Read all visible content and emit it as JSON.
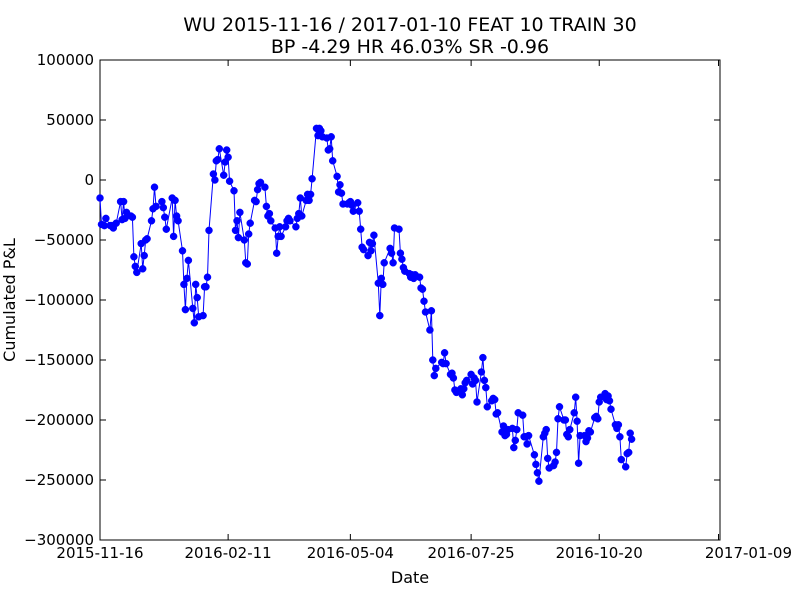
{
  "chart_data": {
    "type": "line",
    "title": "WU 2015-11-16 / 2017-01-10 FEAT 10 TRAIN 30",
    "subtitle": "BP -4.29 HR 46.03%  SR -0.96",
    "xlabel": "Date",
    "ylabel": "Cumulated P&L",
    "xlim": [
      "2015-11-16",
      "2017-01-10"
    ],
    "ylim": [
      -300000,
      100000
    ],
    "x_ticks": [
      "2015-11-16",
      "2016-02-11",
      "2016-05-04",
      "2016-07-25",
      "2016-10-20",
      "2017-01-09"
    ],
    "y_ticks": [
      100000,
      50000,
      0,
      -50000,
      -100000,
      -150000,
      -200000,
      -250000,
      -300000
    ],
    "y_tick_labels": [
      "100000",
      "50000",
      "0",
      "−50000",
      "−100000",
      "−150000",
      "−200000",
      "−250000",
      "−300000"
    ],
    "grid": false,
    "series_color": "#0000ff",
    "series": [
      {
        "name": "",
        "points": [
          [
            "2015-11-16",
            -15000
          ],
          [
            "2015-11-17",
            -37000
          ],
          [
            "2015-11-19",
            -38000
          ],
          [
            "2015-11-20",
            -32000
          ],
          [
            "2015-11-23",
            -38000
          ],
          [
            "2015-11-24",
            -38000
          ],
          [
            "2015-11-25",
            -40000
          ],
          [
            "2015-11-27",
            -36000
          ],
          [
            "2015-11-30",
            -18000
          ],
          [
            "2015-12-01",
            -33000
          ],
          [
            "2015-12-02",
            -18000
          ],
          [
            "2015-12-03",
            -32000
          ],
          [
            "2015-12-04",
            -27000
          ],
          [
            "2015-12-07",
            -30000
          ],
          [
            "2015-12-08",
            -31000
          ],
          [
            "2015-12-09",
            -64000
          ],
          [
            "2015-12-10",
            -72000
          ],
          [
            "2015-12-11",
            -77000
          ],
          [
            "2015-12-14",
            -53000
          ],
          [
            "2015-12-15",
            -74000
          ],
          [
            "2015-12-16",
            -63000
          ],
          [
            "2015-12-17",
            -50000
          ],
          [
            "2015-12-18",
            -49000
          ],
          [
            "2015-12-21",
            -34000
          ],
          [
            "2015-12-22",
            -24000
          ],
          [
            "2015-12-23",
            -6000
          ],
          [
            "2015-12-24",
            -22000
          ],
          [
            "2015-12-28",
            -18000
          ],
          [
            "2015-12-29",
            -23000
          ],
          [
            "2015-12-30",
            -31000
          ],
          [
            "2015-12-31",
            -41000
          ],
          [
            "2016-01-04",
            -15000
          ],
          [
            "2016-01-05",
            -47000
          ],
          [
            "2016-01-06",
            -17000
          ],
          [
            "2016-01-07",
            -30000
          ],
          [
            "2016-01-08",
            -34000
          ],
          [
            "2016-01-11",
            -59000
          ],
          [
            "2016-01-12",
            -87000
          ],
          [
            "2016-01-13",
            -108000
          ],
          [
            "2016-01-14",
            -82000
          ],
          [
            "2016-01-15",
            -67000
          ],
          [
            "2016-01-18",
            -107000
          ],
          [
            "2016-01-19",
            -119000
          ],
          [
            "2016-01-20",
            -87000
          ],
          [
            "2016-01-21",
            -98000
          ],
          [
            "2016-01-22",
            -114000
          ],
          [
            "2016-01-25",
            -113000
          ],
          [
            "2016-01-26",
            -89000
          ],
          [
            "2016-01-27",
            -89000
          ],
          [
            "2016-01-28",
            -81000
          ],
          [
            "2016-01-29",
            -42000
          ],
          [
            "2016-02-01",
            5000
          ],
          [
            "2016-02-02",
            0
          ],
          [
            "2016-02-03",
            16000
          ],
          [
            "2016-02-04",
            17000
          ],
          [
            "2016-02-05",
            26000
          ],
          [
            "2016-02-08",
            4000
          ],
          [
            "2016-02-09",
            15000
          ],
          [
            "2016-02-10",
            25000
          ],
          [
            "2016-02-11",
            19000
          ],
          [
            "2016-02-12",
            -1000
          ],
          [
            "2016-02-15",
            -9000
          ],
          [
            "2016-02-16",
            -42000
          ],
          [
            "2016-02-17",
            -34000
          ],
          [
            "2016-02-18",
            -48000
          ],
          [
            "2016-02-19",
            -27000
          ],
          [
            "2016-02-22",
            -50000
          ],
          [
            "2016-02-23",
            -69000
          ],
          [
            "2016-02-24",
            -70000
          ],
          [
            "2016-02-25",
            -45000
          ],
          [
            "2016-02-26",
            -36000
          ],
          [
            "2016-02-29",
            -17000
          ],
          [
            "2016-03-01",
            -18000
          ],
          [
            "2016-03-02",
            -8000
          ],
          [
            "2016-03-03",
            -3000
          ],
          [
            "2016-03-04",
            -2000
          ],
          [
            "2016-03-07",
            -6000
          ],
          [
            "2016-03-08",
            -22000
          ],
          [
            "2016-03-09",
            -30000
          ],
          [
            "2016-03-10",
            -28000
          ],
          [
            "2016-03-11",
            -34000
          ],
          [
            "2016-03-14",
            -40000
          ],
          [
            "2016-03-15",
            -61000
          ],
          [
            "2016-03-16",
            -47000
          ],
          [
            "2016-03-17",
            -39000
          ],
          [
            "2016-03-18",
            -47000
          ],
          [
            "2016-03-21",
            -39000
          ],
          [
            "2016-03-22",
            -34000
          ],
          [
            "2016-03-23",
            -32000
          ],
          [
            "2016-03-24",
            -34000
          ],
          [
            "2016-03-28",
            -39000
          ],
          [
            "2016-03-29",
            -32000
          ],
          [
            "2016-03-30",
            -28000
          ],
          [
            "2016-03-31",
            -15000
          ],
          [
            "2016-04-01",
            -30000
          ],
          [
            "2016-04-04",
            -17000
          ],
          [
            "2016-04-05",
            -12000
          ],
          [
            "2016-04-06",
            -17000
          ],
          [
            "2016-04-07",
            -12000
          ],
          [
            "2016-04-08",
            1000
          ],
          [
            "2016-04-11",
            43000
          ],
          [
            "2016-04-12",
            37000
          ],
          [
            "2016-04-13",
            43000
          ],
          [
            "2016-04-14",
            41000
          ],
          [
            "2016-04-15",
            36000
          ],
          [
            "2016-04-18",
            35000
          ],
          [
            "2016-04-19",
            25000
          ],
          [
            "2016-04-20",
            26000
          ],
          [
            "2016-04-21",
            36000
          ],
          [
            "2016-04-22",
            16000
          ],
          [
            "2016-04-25",
            3000
          ],
          [
            "2016-04-26",
            -10000
          ],
          [
            "2016-04-27",
            -4000
          ],
          [
            "2016-04-28",
            -11000
          ],
          [
            "2016-04-29",
            -20000
          ],
          [
            "2016-05-02",
            -20000
          ],
          [
            "2016-05-03",
            -19000
          ],
          [
            "2016-05-04",
            -18000
          ],
          [
            "2016-05-05",
            -21000
          ],
          [
            "2016-05-06",
            -26000
          ],
          [
            "2016-05-09",
            -19000
          ],
          [
            "2016-05-10",
            -26000
          ],
          [
            "2016-05-11",
            -41000
          ],
          [
            "2016-05-12",
            -56000
          ],
          [
            "2016-05-13",
            -58000
          ],
          [
            "2016-05-16",
            -63000
          ],
          [
            "2016-05-17",
            -52000
          ],
          [
            "2016-05-18",
            -59000
          ],
          [
            "2016-05-19",
            -53000
          ],
          [
            "2016-05-20",
            -46000
          ],
          [
            "2016-05-23",
            -86000
          ],
          [
            "2016-05-24",
            -113000
          ],
          [
            "2016-05-25",
            -82000
          ],
          [
            "2016-05-26",
            -87000
          ],
          [
            "2016-05-27",
            -69000
          ],
          [
            "2016-05-31",
            -57000
          ],
          [
            "2016-06-01",
            -61000
          ],
          [
            "2016-06-02",
            -69000
          ],
          [
            "2016-06-03",
            -40000
          ],
          [
            "2016-06-06",
            -41000
          ],
          [
            "2016-06-07",
            -61000
          ],
          [
            "2016-06-08",
            -66000
          ],
          [
            "2016-06-09",
            -73000
          ],
          [
            "2016-06-10",
            -76000
          ],
          [
            "2016-06-13",
            -78000
          ],
          [
            "2016-06-14",
            -81000
          ],
          [
            "2016-06-15",
            -79000
          ],
          [
            "2016-06-16",
            -82000
          ],
          [
            "2016-06-17",
            -79000
          ],
          [
            "2016-06-20",
            -81000
          ],
          [
            "2016-06-21",
            -90000
          ],
          [
            "2016-06-22",
            -91000
          ],
          [
            "2016-06-23",
            -101000
          ],
          [
            "2016-06-24",
            -110000
          ],
          [
            "2016-06-27",
            -125000
          ],
          [
            "2016-06-28",
            -109000
          ],
          [
            "2016-06-29",
            -150000
          ],
          [
            "2016-06-30",
            -163000
          ],
          [
            "2016-07-01",
            -157000
          ],
          [
            "2016-07-05",
            -152000
          ],
          [
            "2016-07-06",
            -153000
          ],
          [
            "2016-07-07",
            -144000
          ],
          [
            "2016-07-08",
            -153000
          ],
          [
            "2016-07-11",
            -162000
          ],
          [
            "2016-07-12",
            -161000
          ],
          [
            "2016-07-13",
            -165000
          ],
          [
            "2016-07-14",
            -175000
          ],
          [
            "2016-07-15",
            -177000
          ],
          [
            "2016-07-18",
            -174000
          ],
          [
            "2016-07-19",
            -179000
          ],
          [
            "2016-07-20",
            -174000
          ],
          [
            "2016-07-21",
            -169000
          ],
          [
            "2016-07-22",
            -167000
          ],
          [
            "2016-07-25",
            -162000
          ],
          [
            "2016-07-26",
            -170000
          ],
          [
            "2016-07-27",
            -165000
          ],
          [
            "2016-07-28",
            -167000
          ],
          [
            "2016-07-29",
            -185000
          ],
          [
            "2016-08-01",
            -160000
          ],
          [
            "2016-08-02",
            -148000
          ],
          [
            "2016-08-03",
            -167000
          ],
          [
            "2016-08-04",
            -173000
          ],
          [
            "2016-08-05",
            -189000
          ],
          [
            "2016-08-08",
            -184000
          ],
          [
            "2016-08-09",
            -182000
          ],
          [
            "2016-08-10",
            -183000
          ],
          [
            "2016-08-11",
            -195000
          ],
          [
            "2016-08-12",
            -194000
          ],
          [
            "2016-08-15",
            -210000
          ],
          [
            "2016-08-16",
            -205000
          ],
          [
            "2016-08-17",
            -213000
          ],
          [
            "2016-08-18",
            -212000
          ],
          [
            "2016-08-19",
            -208000
          ],
          [
            "2016-08-22",
            -207000
          ],
          [
            "2016-08-23",
            -223000
          ],
          [
            "2016-08-24",
            -217000
          ],
          [
            "2016-08-25",
            -208000
          ],
          [
            "2016-08-26",
            -194000
          ],
          [
            "2016-08-29",
            -196000
          ],
          [
            "2016-08-30",
            -214000
          ],
          [
            "2016-08-31",
            -214000
          ],
          [
            "2016-09-01",
            -220000
          ],
          [
            "2016-09-02",
            -213000
          ],
          [
            "2016-09-06",
            -229000
          ],
          [
            "2016-09-07",
            -237000
          ],
          [
            "2016-09-08",
            -244000
          ],
          [
            "2016-09-09",
            -251000
          ],
          [
            "2016-09-12",
            -214000
          ],
          [
            "2016-09-13",
            -211000
          ],
          [
            "2016-09-14",
            -208000
          ],
          [
            "2016-09-15",
            -232000
          ],
          [
            "2016-09-16",
            -240000
          ],
          [
            "2016-09-19",
            -238000
          ],
          [
            "2016-09-20",
            -235000
          ],
          [
            "2016-09-21",
            -227000
          ],
          [
            "2016-09-22",
            -199000
          ],
          [
            "2016-09-23",
            -189000
          ],
          [
            "2016-09-26",
            -200000
          ],
          [
            "2016-09-27",
            -200000
          ],
          [
            "2016-09-28",
            -212000
          ],
          [
            "2016-09-29",
            -214000
          ],
          [
            "2016-09-30",
            -208000
          ],
          [
            "2016-10-03",
            -194000
          ],
          [
            "2016-10-04",
            -181000
          ],
          [
            "2016-10-05",
            -201000
          ],
          [
            "2016-10-06",
            -236000
          ],
          [
            "2016-10-07",
            -213000
          ],
          [
            "2016-10-10",
            -213000
          ],
          [
            "2016-10-11",
            -218000
          ],
          [
            "2016-10-12",
            -215000
          ],
          [
            "2016-10-13",
            -209000
          ],
          [
            "2016-10-14",
            -210000
          ],
          [
            "2016-10-17",
            -198000
          ],
          [
            "2016-10-18",
            -197000
          ],
          [
            "2016-10-19",
            -199000
          ],
          [
            "2016-10-20",
            -185000
          ],
          [
            "2016-10-21",
            -181000
          ],
          [
            "2016-10-24",
            -178000
          ],
          [
            "2016-10-25",
            -183000
          ],
          [
            "2016-10-26",
            -180000
          ],
          [
            "2016-10-27",
            -184000
          ],
          [
            "2016-10-28",
            -191000
          ],
          [
            "2016-10-31",
            -204000
          ],
          [
            "2016-11-01",
            -207000
          ],
          [
            "2016-11-02",
            -204000
          ],
          [
            "2016-11-03",
            -214000
          ],
          [
            "2016-11-04",
            -233000
          ],
          [
            "2016-11-07",
            -239000
          ],
          [
            "2016-11-08",
            -228000
          ],
          [
            "2016-11-09",
            -227000
          ],
          [
            "2016-11-10",
            -211000
          ],
          [
            "2016-11-11",
            -216000
          ]
        ]
      }
    ]
  }
}
